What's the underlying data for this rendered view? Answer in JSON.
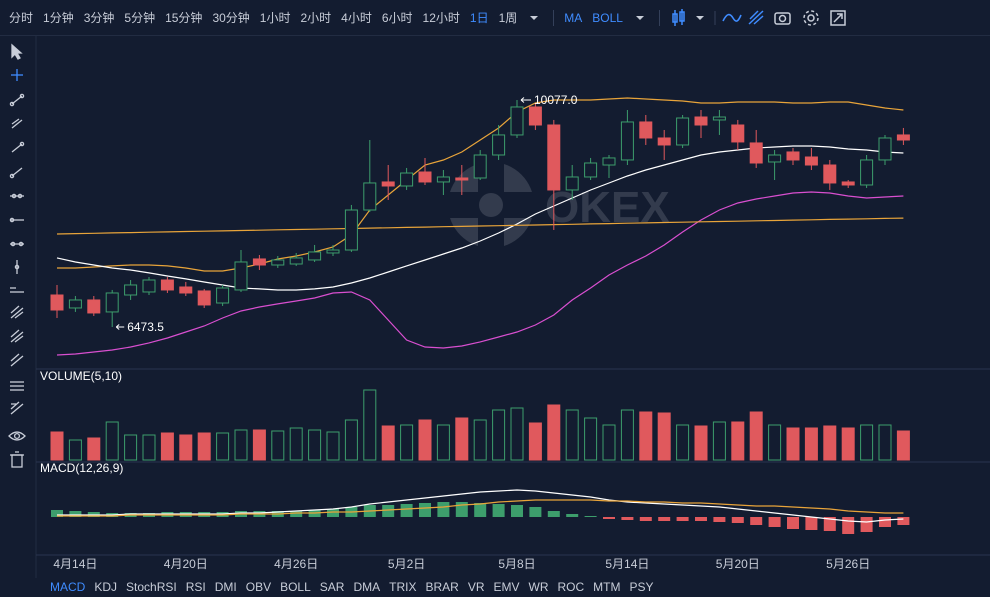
{
  "toolbar": {
    "intervals": [
      "分时",
      "1分钟",
      "3分钟",
      "5分钟",
      "15分钟",
      "30分钟",
      "1小时",
      "2小时",
      "4小时",
      "6小时",
      "12小时",
      "1日",
      "1周"
    ],
    "active_interval": 11,
    "indicators": [
      "MA",
      "BOLL"
    ]
  },
  "chart_data": [
    {
      "type": "candlestick",
      "categories": [
        null,
        "4月14日",
        null,
        null,
        null,
        null,
        null,
        "4月20日",
        null,
        null,
        null,
        null,
        null,
        "4月26日",
        null,
        null,
        null,
        null,
        null,
        "5月2日",
        null,
        null,
        null,
        null,
        null,
        "5月8日",
        null,
        null,
        null,
        null,
        null,
        "5月14日",
        null,
        null,
        null,
        null,
        null,
        "5月20日",
        null,
        null,
        null,
        null,
        null,
        "5月26日",
        null,
        null,
        null
      ],
      "open": [
        6982,
        6776,
        6903,
        6713,
        6982,
        7030,
        7220,
        7109,
        7046,
        6855,
        7062,
        7554,
        7458,
        7474,
        7538,
        7649,
        7696,
        8331,
        8776,
        8712,
        8934,
        8776,
        8839,
        8839,
        9204,
        9522,
        9966,
        9680,
        8649,
        8855,
        9045,
        9125,
        9728,
        9474,
        9363,
        9807,
        9760,
        9680,
        9395,
        9093,
        9252,
        9172,
        9045,
        8776,
        8728,
        9125,
        9522
      ],
      "high": [
        7141,
        6966,
        6966,
        7062,
        7220,
        7268,
        7268,
        7189,
        7078,
        7141,
        7696,
        7617,
        7601,
        7649,
        7776,
        7776,
        8411,
        9442,
        9045,
        8998,
        9157,
        8966,
        9045,
        9283,
        9680,
        10077,
        10029,
        9760,
        9045,
        9157,
        9204,
        9918,
        9839,
        9601,
        9839,
        9918,
        9918,
        9760,
        9601,
        9283,
        9315,
        9315,
        9125,
        8807,
        9204,
        9522,
        9633
      ],
      "low": [
        6617,
        6713,
        6649,
        6473.5,
        6903,
        6982,
        7014,
        6966,
        6776,
        6808,
        7030,
        7379,
        7411,
        7443,
        7506,
        7601,
        7665,
        8300,
        8490,
        8649,
        8728,
        8569,
        8569,
        8807,
        9125,
        9474,
        9601,
        8014,
        8490,
        8807,
        8839,
        9045,
        9363,
        9125,
        9315,
        9474,
        9522,
        9283,
        8998,
        8807,
        9045,
        8966,
        8649,
        8680,
        8680,
        9045,
        9363
      ],
      "close": [
        6744,
        6903,
        6697,
        7014,
        7141,
        7220,
        7062,
        7014,
        6824,
        7093,
        7506,
        7458,
        7538,
        7570,
        7665,
        7696,
        8331,
        8760,
        8712,
        8918,
        8776,
        8855,
        8807,
        9204,
        9522,
        9966,
        9680,
        8649,
        8855,
        9077,
        9157,
        9728,
        9474,
        9363,
        9791,
        9680,
        9807,
        9411,
        9077,
        9204,
        9125,
        9045,
        8760,
        8728,
        9125,
        9474,
        9442
      ],
      "up_color": "#3d9e6c",
      "down_color": "#e0595d",
      "ylim": [
        5871,
        11029
      ],
      "lines": [
        {
          "color": "#e8a43a",
          "values": [
            7411,
            7411,
            7427,
            7443,
            7458,
            7458,
            7443,
            7411,
            7363,
            7363,
            7411,
            7474,
            7554,
            7601,
            7665,
            7744,
            7935,
            8331,
            8569,
            8807,
            9045,
            9125,
            9252,
            9442,
            9633,
            9887,
            10029,
            10077,
            10077,
            10077,
            10093,
            10109,
            10093,
            10077,
            10061,
            10029,
            10029,
            10045,
            10045,
            10045,
            10029,
            10029,
            10045,
            10045,
            9998,
            9950,
            9918
          ]
        },
        {
          "color": "#ffffff",
          "values": [
            7570,
            7506,
            7458,
            7411,
            7379,
            7332,
            7284,
            7237,
            7189,
            7141,
            7093,
            7078,
            7062,
            7062,
            7078,
            7109,
            7173,
            7252,
            7347,
            7443,
            7538,
            7633,
            7728,
            7839,
            7966,
            8109,
            8268,
            8395,
            8522,
            8649,
            8760,
            8870,
            8966,
            9045,
            9125,
            9204,
            9252,
            9283,
            9315,
            9331,
            9347,
            9347,
            9331,
            9299,
            9283,
            9252,
            9236
          ]
        },
        {
          "color": "#d94fd0",
          "values": [
            6030,
            6045,
            6077,
            6109,
            6157,
            6221,
            6300,
            6395,
            6490,
            6617,
            6728,
            6792,
            6840,
            6887,
            6935,
            7014,
            7030,
            6903,
            6585,
            6268,
            6157,
            6141,
            6173,
            6237,
            6316,
            6395,
            6506,
            6665,
            6903,
            7093,
            7300,
            7458,
            7601,
            7776,
            7982,
            8173,
            8331,
            8442,
            8506,
            8553,
            8601,
            8617,
            8601,
            8553,
            8522,
            8538,
            8553
          ]
        },
        {
          "color": "#e8a43a",
          "values": [
            7950,
            7956,
            7961,
            7967,
            7972,
            7978,
            7983,
            7989,
            7994,
            8000,
            8005,
            8011,
            8016,
            8022,
            8027,
            8033,
            8038,
            8044,
            8049,
            8055,
            8060,
            8066,
            8071,
            8077,
            8082,
            8088,
            8093,
            8099,
            8104,
            8110,
            8115,
            8121,
            8126,
            8132,
            8137,
            8143,
            8148,
            8154,
            8159,
            8165,
            8170,
            8176,
            8181,
            8187,
            8192,
            8198,
            8203
          ]
        }
      ],
      "high_label": {
        "value": 10077,
        "label": "10077.0"
      },
      "low_label": 6473.5,
      "watermark": "OKEX"
    },
    {
      "type": "bar",
      "title": "VOLUME(5,10)",
      "ylim": [
        0,
        75
      ],
      "values": [
        28,
        20,
        22,
        38,
        25,
        25,
        27,
        25,
        27,
        27,
        30,
        30,
        29,
        32,
        30,
        28,
        40,
        70,
        34,
        35,
        40,
        35,
        42,
        40,
        50,
        52,
        37,
        55,
        50,
        42,
        35,
        50,
        48,
        47,
        35,
        34,
        38,
        38,
        48,
        35,
        32,
        32,
        34,
        32,
        35,
        35,
        29
      ]
    },
    {
      "type": "macd",
      "title": "MACD(12,26,9)",
      "ylim": [
        -25,
        25
      ],
      "up_color": "#3d9e6c",
      "down_color": "#e0595d",
      "values": [
        7,
        6,
        5,
        4,
        4,
        4,
        5,
        5,
        5,
        5,
        6,
        6,
        6,
        6,
        7,
        8,
        10,
        12,
        12,
        13,
        14,
        15,
        15,
        14,
        13,
        12,
        10,
        6,
        3,
        1,
        -2,
        -3,
        -4,
        -4,
        -4,
        -4,
        -5,
        -6,
        -8,
        -10,
        -12,
        -13,
        -14,
        -17,
        -15,
        -10,
        -8
      ],
      "lines": [
        {
          "color": "#ffffff",
          "values": [
            2,
            2,
            2,
            2,
            3,
            3,
            3,
            3,
            3,
            3,
            4,
            4,
            5,
            6,
            7,
            8,
            10,
            13,
            15,
            17,
            19,
            21,
            23,
            25,
            26,
            27,
            26,
            24,
            22,
            20,
            17,
            15,
            14,
            13,
            12,
            11,
            10,
            8,
            6,
            4,
            2,
            0,
            -2,
            -4,
            -5,
            -3,
            -2
          ]
        },
        {
          "color": "#e8a43a",
          "values": [
            1,
            1,
            1,
            1,
            2,
            2,
            2,
            2,
            2,
            2,
            3,
            3,
            3,
            4,
            4,
            5,
            5,
            6,
            7,
            8,
            9,
            10,
            12,
            13,
            15,
            16,
            17,
            17,
            17,
            17,
            16,
            16,
            15,
            15,
            14,
            14,
            13,
            12,
            11,
            11,
            10,
            9,
            8,
            6,
            5,
            4,
            4
          ]
        }
      ]
    }
  ],
  "tabs": {
    "items": [
      "MACD",
      "KDJ",
      "StochRSI",
      "RSI",
      "DMI",
      "OBV",
      "BOLL",
      "SAR",
      "DMA",
      "TRIX",
      "BRAR",
      "VR",
      "EMV",
      "WR",
      "ROC",
      "MTM",
      "PSY"
    ],
    "active": 0
  }
}
